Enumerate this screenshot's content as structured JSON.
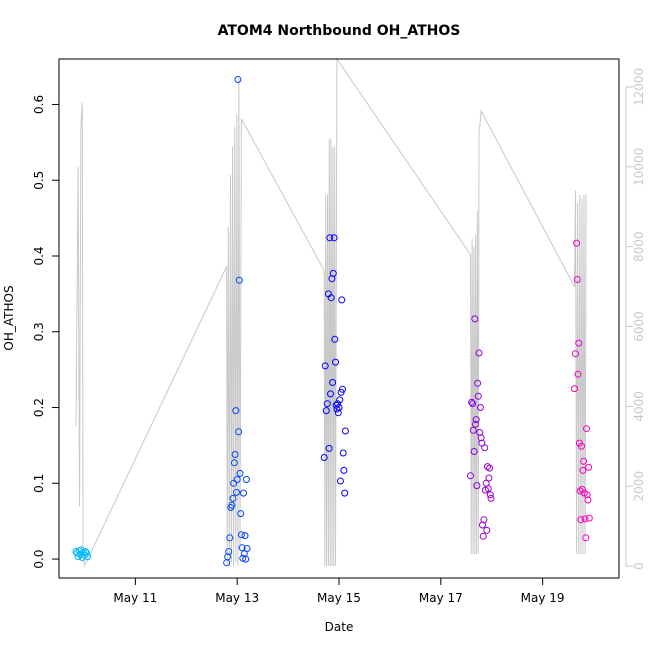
{
  "chart_data": {
    "type": "scatter",
    "title": "ATOM4 Northbound OH_ATHOS",
    "xlabel": "Date",
    "ylabel": "OH_ATHOS",
    "x_axis": {
      "type": "date",
      "range": [
        "2018-05-09 12:00",
        "2018-05-20 12:00"
      ],
      "ticks": [
        {
          "value": "2018-05-11 00:00",
          "label": "May 11"
        },
        {
          "value": "2018-05-13 00:00",
          "label": "May 13"
        },
        {
          "value": "2018-05-15 00:00",
          "label": "May 15"
        },
        {
          "value": "2018-05-17 00:00",
          "label": "May 17"
        },
        {
          "value": "2018-05-19 00:00",
          "label": "May 19"
        }
      ]
    },
    "y_axis": {
      "ylim": [
        -0.025,
        0.66
      ],
      "ticks": [
        0.0,
        0.1,
        0.2,
        0.3,
        0.4,
        0.5,
        0.6
      ],
      "tick_labels": [
        "0.0",
        "0.1",
        "0.2",
        "0.3",
        "0.4",
        "0.5",
        "0.6"
      ]
    },
    "y2_axis": {
      "ylim": [
        -300,
        12700
      ],
      "ticks": [
        0,
        2000,
        4000,
        6000,
        8000,
        10000,
        12000
      ],
      "tick_labels": [
        "0",
        "2000",
        "4000",
        "6000",
        "8000",
        "10000",
        "12000"
      ],
      "color": "#c8c8c8"
    },
    "grid": false,
    "legend": "none",
    "colors": {
      "early": "#00bfff",
      "mid": "#0000ff",
      "late": "#ff00bf",
      "line": "#c8c8c8",
      "frame": "#000000"
    },
    "line_series": {
      "axis": "right",
      "color": "#c8c8c8",
      "points": [
        [
          "2018-05-09 20:00",
          3500
        ],
        [
          "2018-05-09 21:00",
          10000
        ],
        [
          "2018-05-09 21:40",
          1500
        ],
        [
          "2018-05-09 22:20",
          11000
        ],
        [
          "2018-05-09 23:00",
          11600
        ],
        [
          "2018-05-09 23:20",
          500
        ],
        [
          "2018-05-10 00:00",
          0
        ],
        [
          "2018-05-12 19:00",
          7500
        ],
        [
          "2018-05-12 19:20",
          0
        ],
        [
          "2018-05-12 19:50",
          8500
        ],
        [
          "2018-05-12 20:20",
          0
        ],
        [
          "2018-05-12 20:50",
          9800
        ],
        [
          "2018-05-12 21:20",
          100
        ],
        [
          "2018-05-12 21:50",
          10500
        ],
        [
          "2018-05-12 22:20",
          0
        ],
        [
          "2018-05-12 22:50",
          11000
        ],
        [
          "2018-05-12 23:20",
          100
        ],
        [
          "2018-05-12 23:50",
          11300
        ],
        [
          "2018-05-13 00:20",
          0
        ],
        [
          "2018-05-13 00:50",
          12200
        ],
        [
          "2018-05-13 01:20",
          400
        ],
        [
          "2018-05-13 02:00",
          11200
        ],
        [
          "2018-05-14 17:00",
          7400
        ],
        [
          "2018-05-14 17:20",
          0
        ],
        [
          "2018-05-14 17:45",
          9300
        ],
        [
          "2018-05-14 18:10",
          0
        ],
        [
          "2018-05-14 18:35",
          9300
        ],
        [
          "2018-05-14 19:00",
          0
        ],
        [
          "2018-05-14 19:25",
          10700
        ],
        [
          "2018-05-14 19:50",
          0
        ],
        [
          "2018-05-14 20:15",
          10700
        ],
        [
          "2018-05-14 20:40",
          0
        ],
        [
          "2018-05-14 21:05",
          10500
        ],
        [
          "2018-05-14 21:30",
          0
        ],
        [
          "2018-05-14 21:55",
          10500
        ],
        [
          "2018-05-14 22:20",
          0
        ],
        [
          "2018-05-14 23:00",
          12700
        ],
        [
          "2018-05-17 14:00",
          7800
        ],
        [
          "2018-05-17 14:20",
          300
        ],
        [
          "2018-05-17 14:45",
          8200
        ],
        [
          "2018-05-17 15:10",
          300
        ],
        [
          "2018-05-17 15:35",
          8000
        ],
        [
          "2018-05-17 16:00",
          300
        ],
        [
          "2018-05-17 16:25",
          8300
        ],
        [
          "2018-05-17 16:50",
          300
        ],
        [
          "2018-05-17 17:15",
          8900
        ],
        [
          "2018-05-17 17:40",
          300
        ],
        [
          "2018-05-17 18:00",
          10900
        ],
        [
          "2018-05-17 18:20",
          11000
        ],
        [
          "2018-05-17 19:00",
          11400
        ],
        [
          "2018-05-19 15:00",
          7000
        ],
        [
          "2018-05-19 15:30",
          9400
        ],
        [
          "2018-05-19 16:00",
          300
        ],
        [
          "2018-05-19 16:30",
          9100
        ],
        [
          "2018-05-19 17:00",
          300
        ],
        [
          "2018-05-19 17:30",
          9300
        ],
        [
          "2018-05-19 18:00",
          300
        ],
        [
          "2018-05-19 18:30",
          9200
        ],
        [
          "2018-05-19 19:00",
          300
        ],
        [
          "2018-05-19 19:30",
          9300
        ],
        [
          "2018-05-19 20:00",
          300
        ],
        [
          "2018-05-19 20:30",
          9300
        ]
      ]
    },
    "points": [
      [
        "2018-05-09 20:00",
        0.01
      ],
      [
        "2018-05-09 20:30",
        0.008
      ],
      [
        "2018-05-09 21:00",
        0.003
      ],
      [
        "2018-05-09 21:30",
        0.011
      ],
      [
        "2018-05-09 22:00",
        0.006
      ],
      [
        "2018-05-09 22:30",
        0.012
      ],
      [
        "2018-05-09 23:00",
        0.002
      ],
      [
        "2018-05-09 23:30",
        0.009
      ],
      [
        "2018-05-10 00:00",
        0.005
      ],
      [
        "2018-05-10 00:30",
        0.01
      ],
      [
        "2018-05-10 01:00",
        0.008
      ],
      [
        "2018-05-10 01:30",
        0.003
      ],
      [
        "2018-05-12 19:00",
        -0.005
      ],
      [
        "2018-05-12 19:30",
        0.003
      ],
      [
        "2018-05-12 20:00",
        0.01
      ],
      [
        "2018-05-12 20:30",
        0.028
      ],
      [
        "2018-05-12 21:00",
        0.068
      ],
      [
        "2018-05-12 21:30",
        0.071
      ],
      [
        "2018-05-12 22:00",
        0.08
      ],
      [
        "2018-05-12 22:20",
        0.1
      ],
      [
        "2018-05-12 22:40",
        0.127
      ],
      [
        "2018-05-12 23:00",
        0.138
      ],
      [
        "2018-05-12 23:20",
        0.196
      ],
      [
        "2018-05-12 23:40",
        0.088
      ],
      [
        "2018-05-13 00:00",
        0.105
      ],
      [
        "2018-05-13 00:20",
        0.633
      ],
      [
        "2018-05-13 00:40",
        0.168
      ],
      [
        "2018-05-13 01:00",
        0.368
      ],
      [
        "2018-05-13 01:20",
        0.113
      ],
      [
        "2018-05-13 01:40",
        0.06
      ],
      [
        "2018-05-13 02:00",
        0.032
      ],
      [
        "2018-05-13 02:20",
        0.015
      ],
      [
        "2018-05-13 02:40",
        0.001
      ],
      [
        "2018-05-13 03:00",
        0.087
      ],
      [
        "2018-05-13 03:20",
        0.007
      ],
      [
        "2018-05-13 03:40",
        0.031
      ],
      [
        "2018-05-13 04:00",
        0.0
      ],
      [
        "2018-05-13 04:20",
        0.105
      ],
      [
        "2018-05-13 04:40",
        0.014
      ],
      [
        "2018-05-14 17:00",
        0.134
      ],
      [
        "2018-05-14 17:30",
        0.255
      ],
      [
        "2018-05-14 18:00",
        0.196
      ],
      [
        "2018-05-14 18:30",
        0.205
      ],
      [
        "2018-05-14 19:00",
        0.35
      ],
      [
        "2018-05-14 19:20",
        0.146
      ],
      [
        "2018-05-14 19:40",
        0.424
      ],
      [
        "2018-05-14 20:00",
        0.218
      ],
      [
        "2018-05-14 20:20",
        0.345
      ],
      [
        "2018-05-14 20:40",
        0.37
      ],
      [
        "2018-05-14 21:00",
        0.233
      ],
      [
        "2018-05-14 21:20",
        0.377
      ],
      [
        "2018-05-14 21:40",
        0.424
      ],
      [
        "2018-05-14 22:00",
        0.29
      ],
      [
        "2018-05-14 22:20",
        0.26
      ],
      [
        "2018-05-14 22:40",
        0.203
      ],
      [
        "2018-05-14 23:00",
        0.198
      ],
      [
        "2018-05-14 23:20",
        0.205
      ],
      [
        "2018-05-14 23:40",
        0.193
      ],
      [
        "2018-05-15 00:00",
        0.2
      ],
      [
        "2018-05-15 00:20",
        0.21
      ],
      [
        "2018-05-15 00:40",
        0.103
      ],
      [
        "2018-05-15 01:00",
        0.22
      ],
      [
        "2018-05-15 01:20",
        0.342
      ],
      [
        "2018-05-15 01:40",
        0.224
      ],
      [
        "2018-05-15 02:00",
        0.14
      ],
      [
        "2018-05-15 02:20",
        0.117
      ],
      [
        "2018-05-15 02:40",
        0.087
      ],
      [
        "2018-05-15 03:00",
        0.169
      ],
      [
        "2018-05-17 14:00",
        0.11
      ],
      [
        "2018-05-17 14:30",
        0.207
      ],
      [
        "2018-05-17 15:00",
        0.205
      ],
      [
        "2018-05-17 15:20",
        0.17
      ],
      [
        "2018-05-17 15:40",
        0.142
      ],
      [
        "2018-05-17 16:00",
        0.317
      ],
      [
        "2018-05-17 16:20",
        0.178
      ],
      [
        "2018-05-17 16:40",
        0.184
      ],
      [
        "2018-05-17 17:00",
        0.097
      ],
      [
        "2018-05-17 17:20",
        0.232
      ],
      [
        "2018-05-17 17:40",
        0.215
      ],
      [
        "2018-05-17 18:00",
        0.272
      ],
      [
        "2018-05-17 18:20",
        0.167
      ],
      [
        "2018-05-17 18:40",
        0.2
      ],
      [
        "2018-05-17 19:00",
        0.16
      ],
      [
        "2018-05-17 19:20",
        0.153
      ],
      [
        "2018-05-17 19:40",
        0.045
      ],
      [
        "2018-05-17 20:00",
        0.03
      ],
      [
        "2018-05-17 20:20",
        0.052
      ],
      [
        "2018-05-17 20:40",
        0.147
      ],
      [
        "2018-05-17 21:00",
        0.091
      ],
      [
        "2018-05-17 21:20",
        0.1
      ],
      [
        "2018-05-17 21:40",
        0.038
      ],
      [
        "2018-05-17 22:00",
        0.122
      ],
      [
        "2018-05-17 22:20",
        0.093
      ],
      [
        "2018-05-17 22:40",
        0.107
      ],
      [
        "2018-05-17 23:00",
        0.12
      ],
      [
        "2018-05-17 23:20",
        0.085
      ],
      [
        "2018-05-17 23:40",
        0.08
      ],
      [
        "2018-05-19 15:00",
        0.225
      ],
      [
        "2018-05-19 15:30",
        0.271
      ],
      [
        "2018-05-19 16:00",
        0.417
      ],
      [
        "2018-05-19 16:20",
        0.369
      ],
      [
        "2018-05-19 16:40",
        0.244
      ],
      [
        "2018-05-19 17:00",
        0.285
      ],
      [
        "2018-05-19 17:20",
        0.153
      ],
      [
        "2018-05-19 17:40",
        0.09
      ],
      [
        "2018-05-19 18:00",
        0.052
      ],
      [
        "2018-05-19 18:20",
        0.149
      ],
      [
        "2018-05-19 18:40",
        0.092
      ],
      [
        "2018-05-19 19:00",
        0.117
      ],
      [
        "2018-05-19 19:20",
        0.129
      ],
      [
        "2018-05-19 19:40",
        0.087
      ],
      [
        "2018-05-19 20:00",
        0.053
      ],
      [
        "2018-05-19 20:20",
        0.028
      ],
      [
        "2018-05-19 20:40",
        0.172
      ],
      [
        "2018-05-19 21:00",
        0.085
      ],
      [
        "2018-05-19 21:20",
        0.078
      ],
      [
        "2018-05-19 21:40",
        0.121
      ],
      [
        "2018-05-19 22:00",
        0.054
      ]
    ]
  }
}
